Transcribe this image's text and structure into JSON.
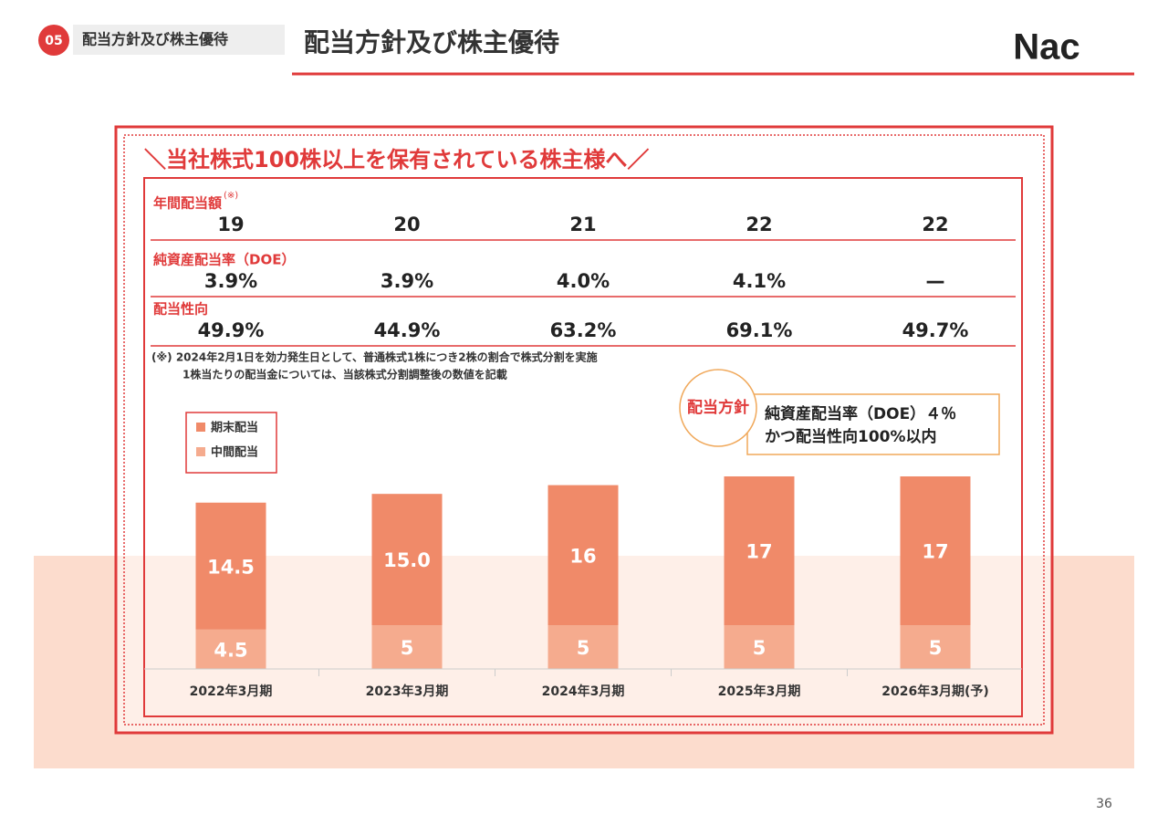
{
  "header": {
    "section_number": "05",
    "section_label": "配当方針及び株主優待",
    "title": "配当方針及び株主優待",
    "logo": "Nac"
  },
  "banner": "＼当社株式100株以上を保有されている株主様へ／",
  "table": {
    "rows": [
      {
        "label": "年間配当額",
        "note_mark": "(※)",
        "values": [
          "19",
          "20",
          "21",
          "22",
          "22"
        ]
      },
      {
        "label": "純資産配当率（DOE）",
        "values": [
          "3.9%",
          "3.9%",
          "4.0%",
          "4.1%",
          "—"
        ]
      },
      {
        "label": "配当性向",
        "values": [
          "49.9%",
          "44.9%",
          "63.2%",
          "69.1%",
          "49.7%"
        ]
      }
    ]
  },
  "note": [
    "(※) 2024年2月1日を効力発生日として、普通株式1株につき2株の割合で株式分割を実施",
    "1株当たりの配当金については、当該株式分割調整後の数値を記載"
  ],
  "policy": {
    "label": "配当方針",
    "lines": [
      "純資産配当率（DOE）４％",
      "かつ配当性向100%以内"
    ]
  },
  "chart_data": {
    "type": "stacked_bar",
    "categories": [
      "2022年3月期",
      "2023年3月期",
      "2024年3月期",
      "2025年3月期",
      "2026年3月期(予)"
    ],
    "series": [
      {
        "name": "中間配当",
        "color": "#f5ab8e",
        "values": [
          4.5,
          5,
          5,
          5,
          5
        ]
      },
      {
        "name": "期末配当",
        "color": "#f08a69",
        "values": [
          14.5,
          15.0,
          16,
          17,
          17
        ],
        "value_labels": [
          "14.5",
          "15.0",
          "16",
          "17",
          "17"
        ]
      }
    ],
    "ylim": [
      0,
      22
    ]
  },
  "page_number": "36"
}
